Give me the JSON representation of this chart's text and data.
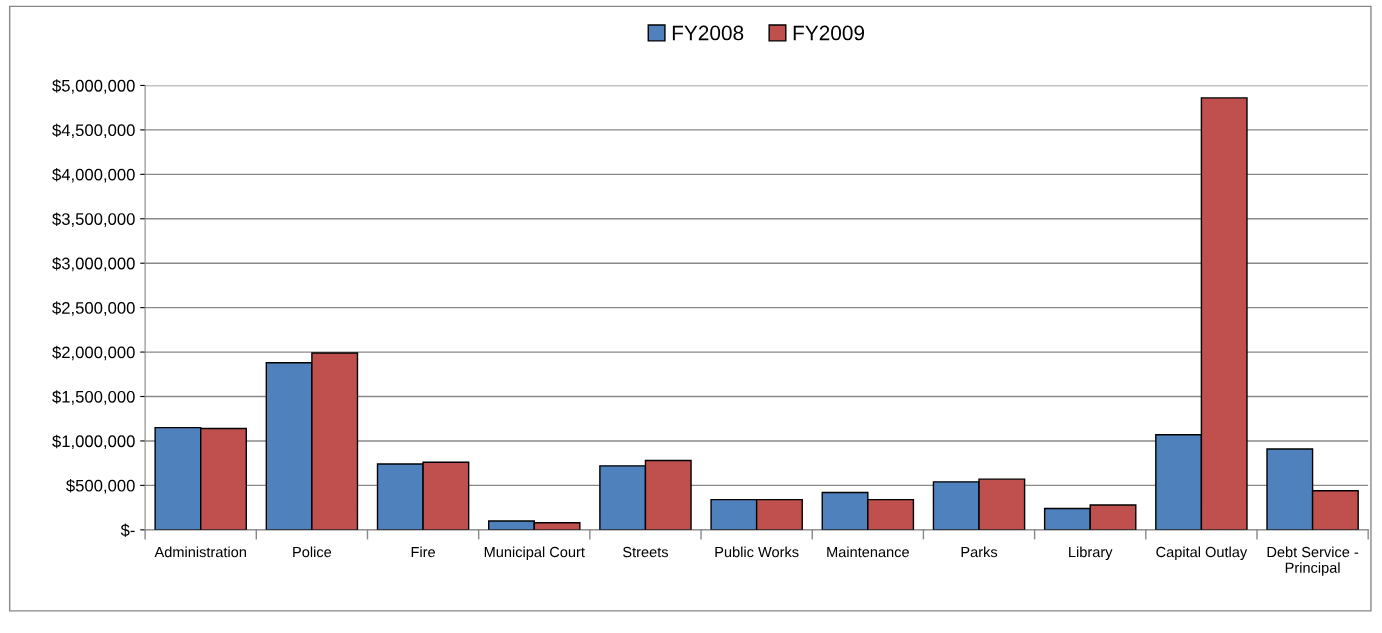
{
  "chart_data": {
    "type": "bar",
    "categories": [
      "Administration",
      "Police",
      "Fire",
      "Municipal Court",
      "Streets",
      "Public Works",
      "Maintenance",
      "Parks",
      "Library",
      "Capital Outlay",
      "Debt Service -\nPrincipal"
    ],
    "series": [
      {
        "name": "FY2008",
        "color": "#4f81bd",
        "values": [
          1150000,
          1880000,
          740000,
          100000,
          720000,
          340000,
          420000,
          540000,
          240000,
          1070000,
          910000
        ]
      },
      {
        "name": "FY2009",
        "color": "#c0504d",
        "values": [
          1140000,
          1990000,
          760000,
          80000,
          780000,
          340000,
          340000,
          570000,
          280000,
          4860000,
          440000
        ]
      }
    ],
    "ylim": [
      0,
      5000000
    ],
    "yticks": [
      {
        "value": 0,
        "label": "$-"
      },
      {
        "value": 500000,
        "label": "$500,000"
      },
      {
        "value": 1000000,
        "label": "$1,000,000"
      },
      {
        "value": 1500000,
        "label": "$1,500,000"
      },
      {
        "value": 2000000,
        "label": "$2,000,000"
      },
      {
        "value": 2500000,
        "label": "$2,500,000"
      },
      {
        "value": 3000000,
        "label": "$3,000,000"
      },
      {
        "value": 3500000,
        "label": "$3,500,000"
      },
      {
        "value": 4000000,
        "label": "$4,000,000"
      },
      {
        "value": 4500000,
        "label": "$4,500,000"
      },
      {
        "value": 5000000,
        "label": "$5,000,000"
      }
    ],
    "grid": "y",
    "legend": "top"
  }
}
